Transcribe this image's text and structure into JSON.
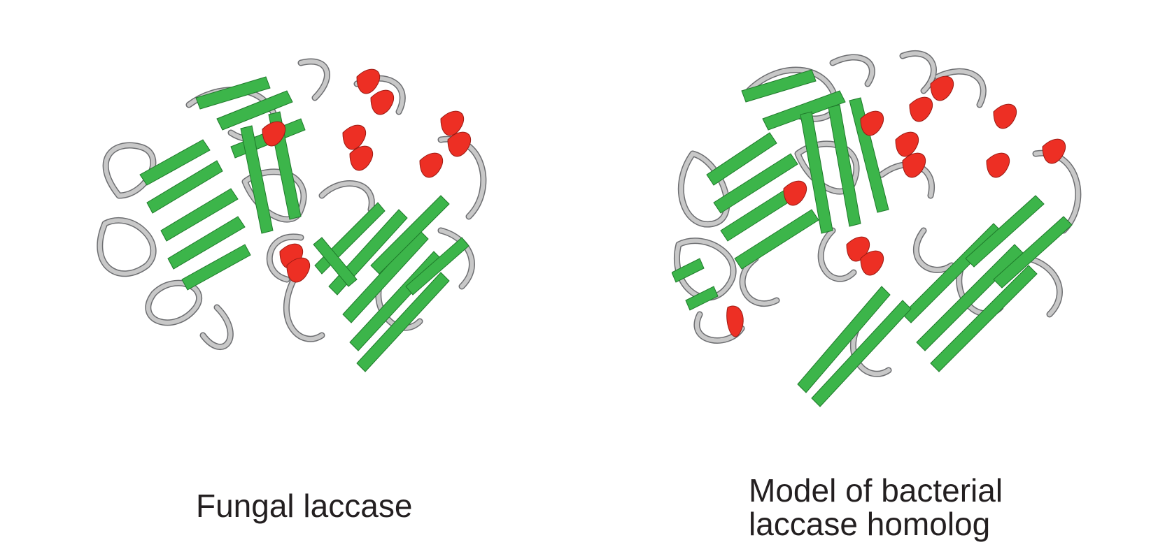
{
  "panels": [
    {
      "caption_lines": [
        "Fungal laccase"
      ],
      "image": "protein-ribbon-structure"
    },
    {
      "caption_lines": [
        "Model of bacterial",
        "laccase homolog"
      ],
      "image": "protein-ribbon-structure"
    }
  ],
  "colors": {
    "beta_strand": "#3cb54a",
    "alpha_helix": "#ed2f24",
    "coil": "#c8c8c8",
    "coil_shadow": "#6d6e71",
    "text": "#231f20"
  }
}
